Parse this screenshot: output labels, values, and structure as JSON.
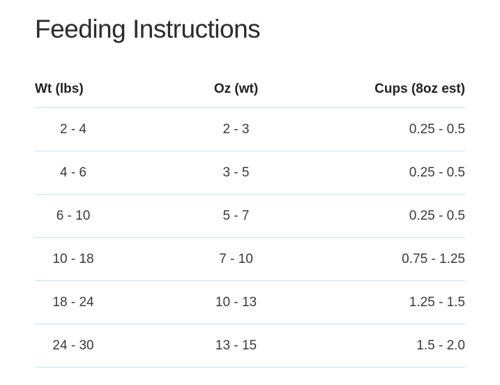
{
  "page": {
    "title": "Feeding Instructions"
  },
  "table": {
    "columns": [
      {
        "label": "Wt (lbs)"
      },
      {
        "label": "Oz (wt)"
      },
      {
        "label": "Cups (8oz est)"
      }
    ],
    "rows": [
      {
        "wt": "2 - 4",
        "oz": "2 - 3",
        "cups": "0.25 - 0.5"
      },
      {
        "wt": "4 - 6",
        "oz": "3 - 5",
        "cups": "0.25 - 0.5"
      },
      {
        "wt": "6 - 10",
        "oz": "5 - 7",
        "cups": "0.25 - 0.5"
      },
      {
        "wt": "10 - 18",
        "oz": "7 - 10",
        "cups": "0.75 - 1.25"
      },
      {
        "wt": "18 - 24",
        "oz": "10 - 13",
        "cups": "1.25 - 1.5"
      },
      {
        "wt": "24 - 30",
        "oz": "13 - 15",
        "cups": "1.5 - 2.0"
      }
    ]
  },
  "colors": {
    "divider": "#c2e4f2",
    "title_text": "#2b2b2e",
    "body_text": "#3a3a3d",
    "background": "#ffffff"
  }
}
